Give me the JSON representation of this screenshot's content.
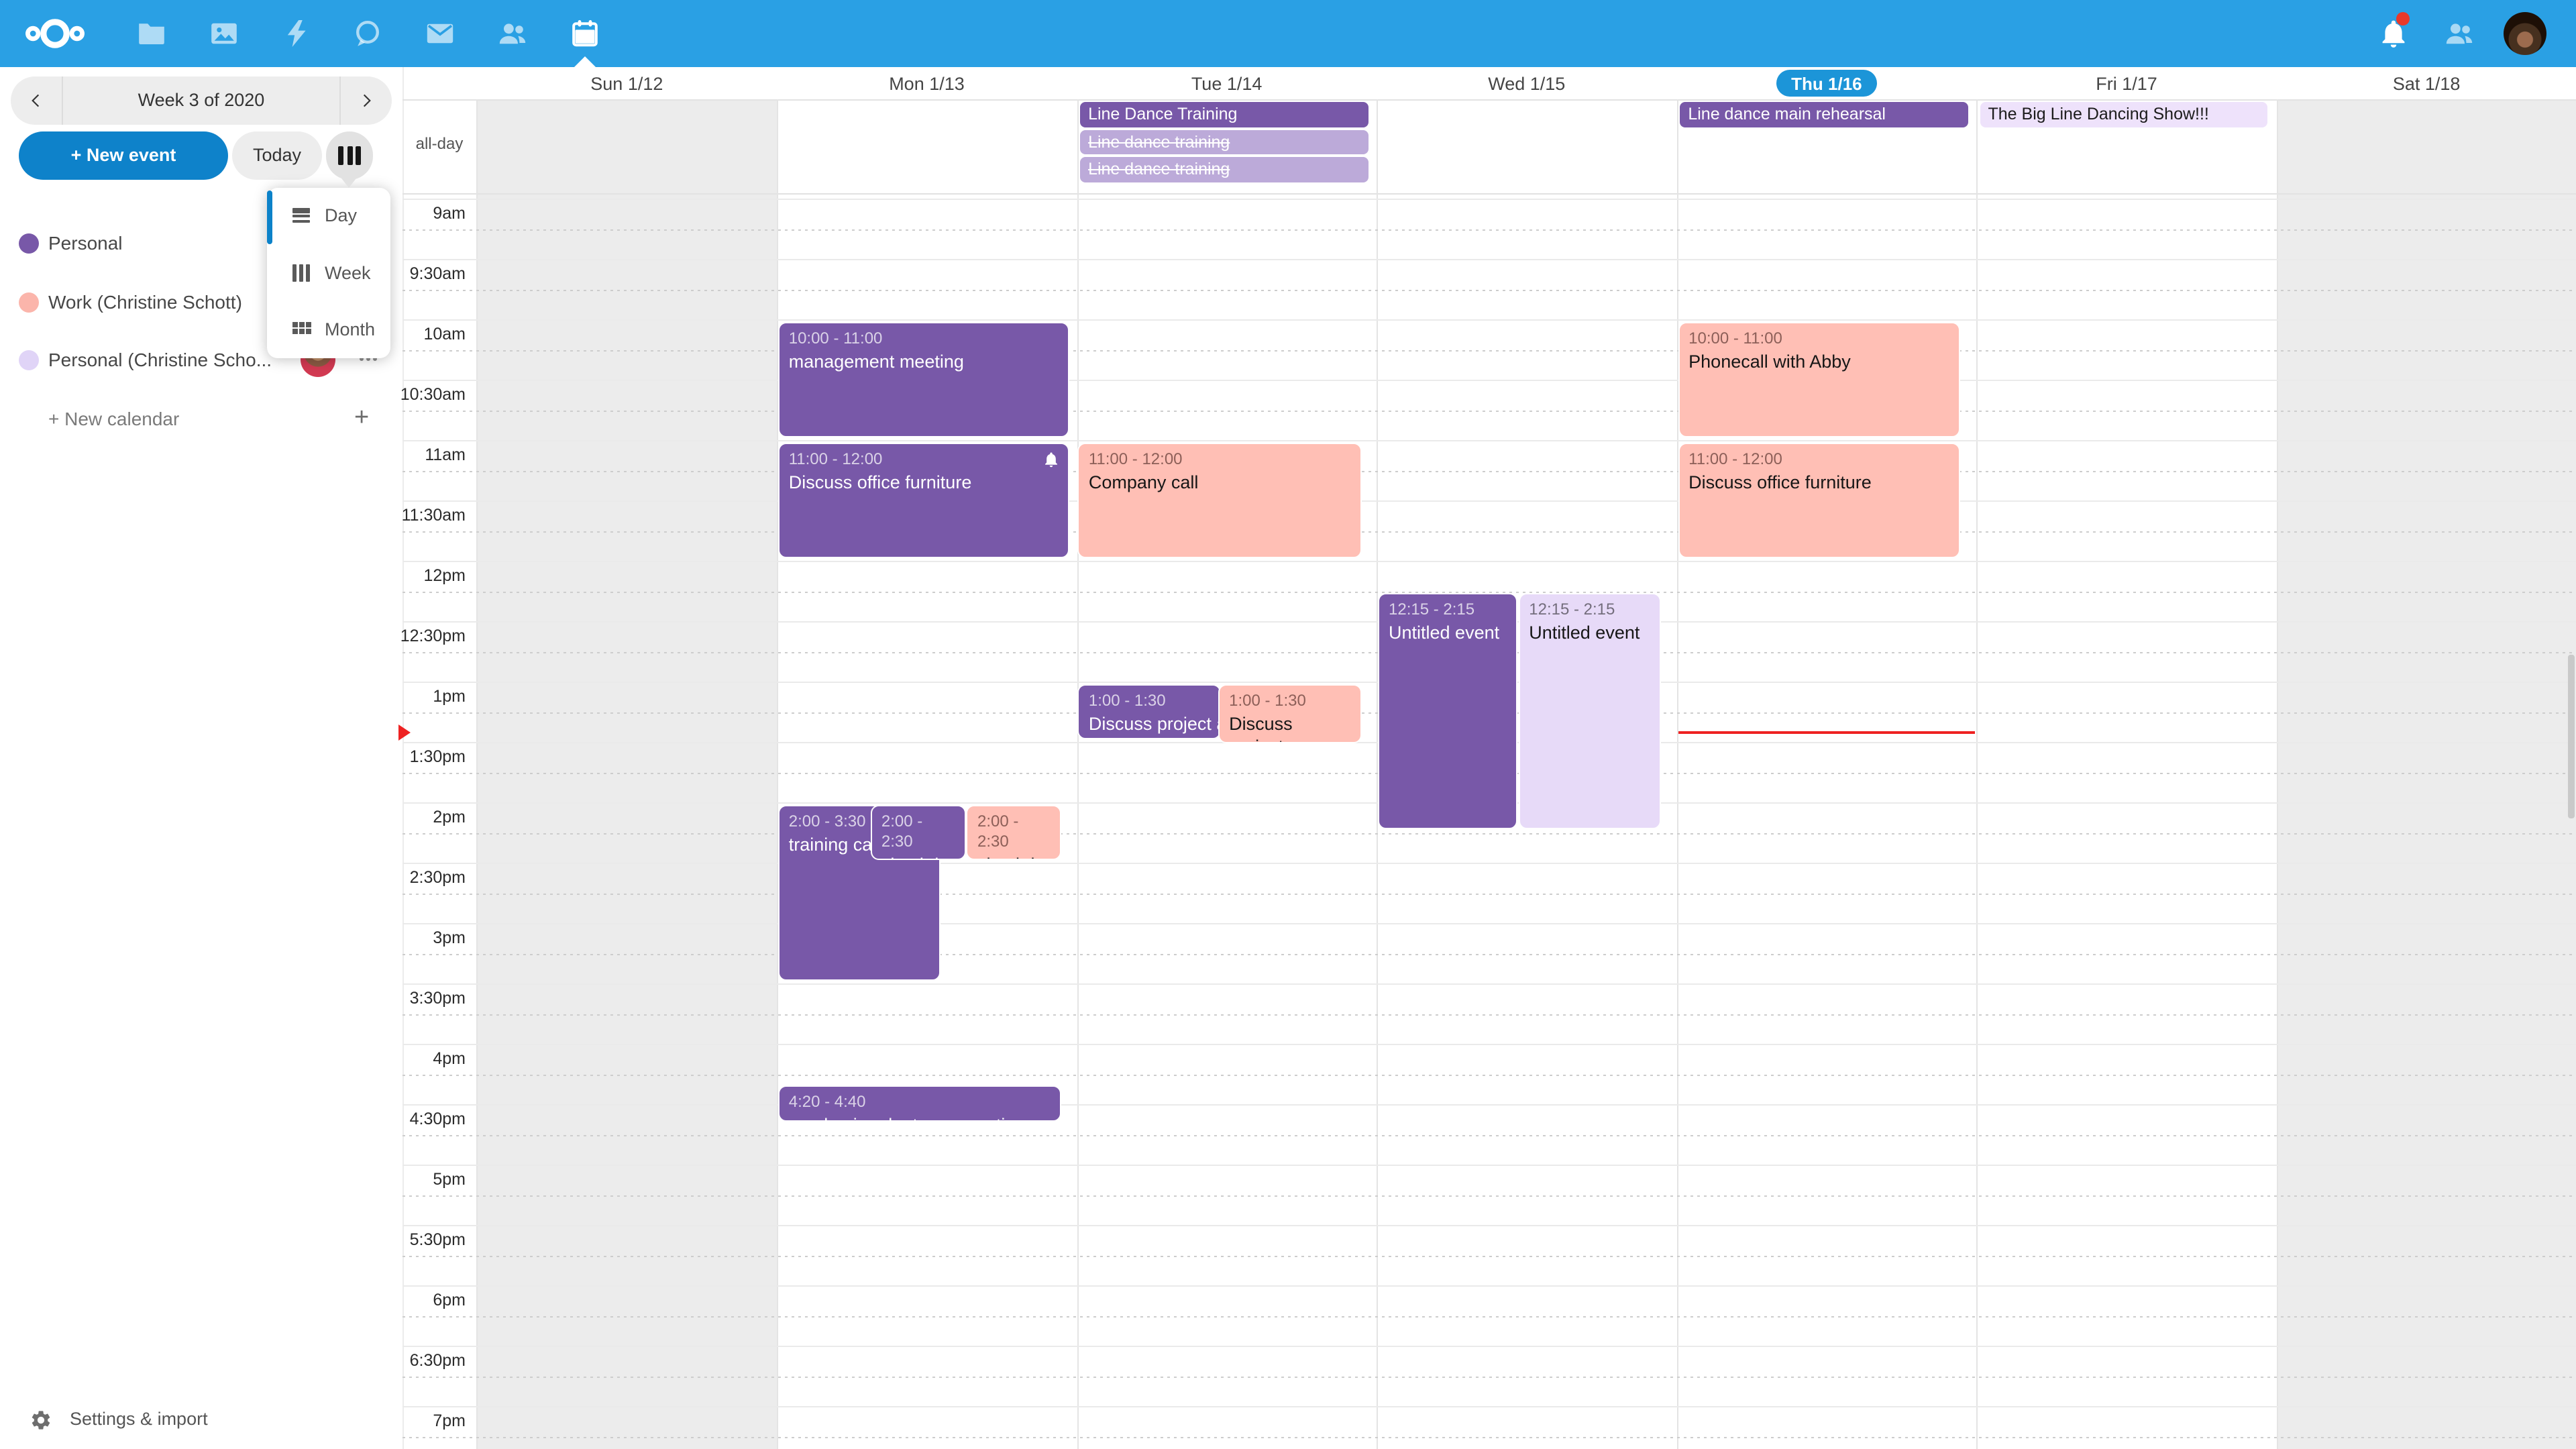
{
  "topbar": {
    "apps": [
      {
        "name": "files",
        "icon": "folder"
      },
      {
        "name": "photos",
        "icon": "photos"
      },
      {
        "name": "activity",
        "icon": "bolt"
      },
      {
        "name": "talk",
        "icon": "talk"
      },
      {
        "name": "mail",
        "icon": "mail"
      },
      {
        "name": "contacts",
        "icon": "contacts"
      },
      {
        "name": "calendar",
        "icon": "calendar",
        "active": true
      }
    ],
    "has_notification_dot": true,
    "colors": {
      "bar": "#2aa0e4",
      "notification_dot": "#e8392b"
    }
  },
  "sidebar": {
    "week_label": "Week 3 of 2020",
    "new_event_label": "+ New event",
    "today_label": "Today",
    "view_menu": {
      "items": [
        {
          "label": "Day",
          "icon": "view-day"
        },
        {
          "label": "Week",
          "icon": "view-week"
        },
        {
          "label": "Month",
          "icon": "view-month"
        }
      ],
      "accent_color": "#0c82c9"
    },
    "calendars": [
      {
        "name": "Personal",
        "color": "#7858a8"
      },
      {
        "name": "Work (Christine Schott)",
        "color": "#fbb5ab",
        "has_menu": false
      },
      {
        "name": "Personal (Christine Scho...",
        "color": "#e0d4f7",
        "has_avatar": true,
        "has_menu": true
      }
    ],
    "new_calendar_label": "+ New calendar",
    "new_calendar_plus": "+",
    "settings_label": "Settings & import"
  },
  "calendar": {
    "allday_label": "all-day",
    "days": [
      {
        "label": "Sun 1/12",
        "weekend": true
      },
      {
        "label": "Mon 1/13"
      },
      {
        "label": "Tue 1/14"
      },
      {
        "label": "Wed 1/15"
      },
      {
        "label": "Thu 1/16",
        "today": true
      },
      {
        "label": "Fri 1/17"
      },
      {
        "label": "Sat 1/18",
        "weekend": true
      }
    ],
    "times": [
      "9am",
      "9:30am",
      "10am",
      "10:30am",
      "11am",
      "11:30am",
      "12pm",
      "12:30pm",
      "1pm",
      "1:30pm",
      "2pm",
      "2:30pm",
      "3pm",
      "3:30pm",
      "4pm",
      "4:30pm",
      "5pm",
      "5:30pm",
      "6pm",
      "6:30pm",
      "7pm"
    ],
    "colors": {
      "purple": "#7858a8",
      "salmon": "#ffbfb5",
      "lavender_mid": "#bcaad9",
      "lavender_light": "#e7daf8",
      "lavender_pale": "#eee2fb",
      "today_pill": "#1c95d8",
      "now_line": "#ee2222",
      "weekend_shade": "#ececec"
    },
    "allday_events": [
      {
        "day": 2,
        "row": 0,
        "title": "Line Dance Training",
        "style": "purple"
      },
      {
        "day": 2,
        "row": 1,
        "title": "Line dance training",
        "style": "lavender_mid",
        "strike": true
      },
      {
        "day": 2,
        "row": 2,
        "title": "Line dance training",
        "style": "lavender_mid",
        "strike": true
      },
      {
        "day": 4,
        "row": 0,
        "title": "Line dance main rehearsal",
        "style": "purple"
      },
      {
        "day": 5,
        "row": 0,
        "title": "The Big Line Dancing Show!!!",
        "style": "lavender_pale"
      }
    ],
    "events": [
      {
        "day": 1,
        "start": 10,
        "end": 11,
        "time": "10:00 - 11:00",
        "title": "management meeting",
        "style": "purple",
        "lf": 0.004,
        "rf": 0.975
      },
      {
        "day": 1,
        "start": 11,
        "end": 12,
        "time": "11:00 - 12:00",
        "title": "Discuss office furniture",
        "style": "purple",
        "lf": 0.004,
        "rf": 0.975,
        "bell": true
      },
      {
        "day": 1,
        "start": 14,
        "end": 15.5,
        "time": "2:00 - 3:30",
        "title": "training call",
        "style": "purple",
        "lf": 0.004,
        "rf": 0.546
      },
      {
        "day": 1,
        "start": 14,
        "end": 14.5,
        "time": "2:00 - 2:30",
        "title": "check-in",
        "style": "purple",
        "lf": 0.313,
        "rf": 0.631,
        "z": 3
      },
      {
        "day": 1,
        "start": 14,
        "end": 14.5,
        "time": "2:00 - 2:30",
        "title": "check-in",
        "style": "salmon",
        "lf": 0.633,
        "rf": 0.948,
        "z": 4
      },
      {
        "day": 1,
        "start": 16.333,
        "end": 16.667,
        "time": "4:20 - 4:40",
        "title": "purchasing dept conversation",
        "style": "purple",
        "lf": 0.004,
        "rf": 0.948
      },
      {
        "day": 2,
        "start": 11,
        "end": 12,
        "time": "11:00 - 12:00",
        "title": "Company call",
        "style": "salmon",
        "lf": 0.004,
        "rf": 0.951
      },
      {
        "day": 2,
        "start": 13,
        "end": 13.5,
        "time": "1:00 - 1:30",
        "title": "Discuss project announcement",
        "style": "purple",
        "lf": 0.004,
        "rf": 0.481,
        "nowrap": true
      },
      {
        "day": 2,
        "start": 13,
        "end": 13.5,
        "time": "1:00 - 1:30",
        "title": "Discuss project announcement",
        "style": "salmon",
        "lf": 0.472,
        "rf": 0.951,
        "z": 3,
        "hplus": 3
      },
      {
        "day": 3,
        "start": 12.25,
        "end": 14.25,
        "time": "12:15 - 2:15",
        "title": "Untitled event",
        "style": "purple",
        "lf": 0.004,
        "rf": 0.47
      },
      {
        "day": 3,
        "start": 12.25,
        "end": 14.25,
        "time": "12:15 - 2:15",
        "title": "Untitled event",
        "style": "lavender_light",
        "lf": 0.472,
        "rf": 0.948
      },
      {
        "day": 4,
        "start": 10,
        "end": 11,
        "time": "10:00 - 11:00",
        "title": "Phonecall with Abby",
        "style": "salmon",
        "lf": 0.004,
        "rf": 0.946
      },
      {
        "day": 4,
        "start": 11,
        "end": 12,
        "time": "11:00 - 12:00",
        "title": "Discuss office furniture",
        "style": "salmon",
        "lf": 0.004,
        "rf": 0.946
      }
    ],
    "now": {
      "day": 4,
      "hour": 13.41
    }
  }
}
